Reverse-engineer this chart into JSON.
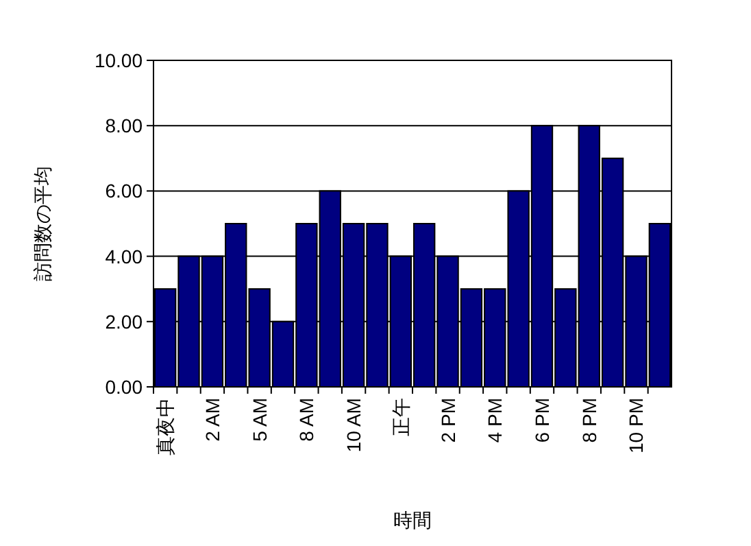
{
  "chart_data": {
    "type": "bar",
    "xlabel": "時間",
    "ylabel": "訪問数の平均",
    "categories": [
      "真夜中",
      null,
      "2 AM",
      null,
      "5 AM",
      null,
      "8 AM",
      null,
      "10 AM",
      null,
      "正午",
      null,
      "2 PM",
      null,
      "4 PM",
      null,
      "6 PM",
      null,
      "8 PM",
      null,
      "10 PM",
      null
    ],
    "series": [
      {
        "color": "#000080",
        "values": [
          3,
          4,
          4,
          5,
          3,
          2,
          5,
          6,
          5,
          5,
          4,
          5,
          4,
          3,
          3,
          6,
          8,
          3,
          8,
          7,
          4,
          5
        ]
      }
    ],
    "ylim": [
      0,
      10
    ],
    "yticks": [
      {
        "value": 0,
        "label": "0.00"
      },
      {
        "value": 2,
        "label": "2.00"
      },
      {
        "value": 4,
        "label": "4.00"
      },
      {
        "value": 6,
        "label": "6.00"
      },
      {
        "value": 8,
        "label": "8.00"
      },
      {
        "value": 10,
        "label": "10.00"
      }
    ],
    "grid": "y"
  }
}
